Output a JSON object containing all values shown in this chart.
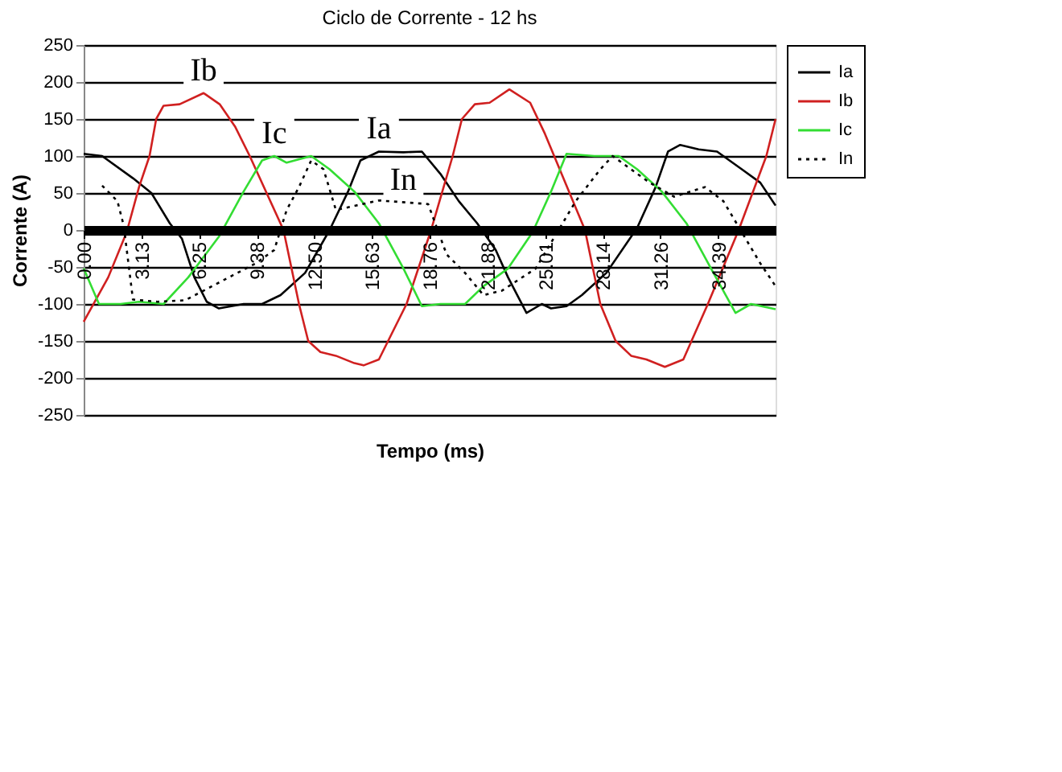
{
  "chart_data": {
    "type": "line",
    "title": "Ciclo de Corrente - 12 hs",
    "xlabel": "Tempo (ms)",
    "ylabel": "Corrente (A)",
    "xlim": [
      0,
      37.5
    ],
    "xticks": [
      {
        "value": 0,
        "label": "0.00"
      },
      3.13,
      6.25,
      9.38,
      {
        "value": 12.5,
        "label": "12.50"
      },
      15.63,
      18.76,
      21.88,
      25.01,
      28.14,
      31.26,
      34.39
    ],
    "ylim": [
      -250,
      250
    ],
    "yticks": [
      -250,
      -200,
      -150,
      -100,
      -50,
      0,
      50,
      100,
      150,
      200,
      250
    ],
    "grid": "y",
    "legend": "right",
    "line_style": "solid",
    "marker": "none",
    "annotations": [
      {
        "text": "Ib",
        "x": 6.5,
        "y": 185
      },
      {
        "text": "Ic",
        "x": 10.33,
        "y": 100
      },
      {
        "text": "Ia",
        "x": 16,
        "y": 106
      },
      {
        "text": "In",
        "x": 17.33,
        "y": 37.5
      }
    ],
    "series": [
      {
        "name": "Ia",
        "color": "#000000",
        "x": [
          0,
          1,
          2.67,
          3.67,
          4.67,
          5.33,
          6,
          6.67,
          7.33,
          8.67,
          9.67,
          10.67,
          12,
          13.33,
          14.33,
          15,
          16,
          17.33,
          18.33,
          19.33,
          20.33,
          21.33,
          22.33,
          23,
          24,
          24.83,
          25.33,
          26.17,
          27,
          28.33,
          30,
          31,
          31.67,
          32.33,
          33.33,
          34.33,
          35.67,
          36.67,
          37.5
        ],
        "values": [
          103,
          100,
          70,
          50,
          9,
          -12,
          -64,
          -97,
          -106,
          -100,
          -100,
          -88,
          -58,
          0,
          52,
          94,
          106,
          105,
          106,
          76,
          39,
          9,
          -27,
          -64,
          -112,
          -100,
          -106,
          -103,
          -88,
          -58,
          3,
          58,
          106,
          115,
          109,
          106,
          82,
          64,
          33
        ]
      },
      {
        "name": "Ib",
        "color": "#d02020",
        "x": [
          0,
          1.33,
          2.33,
          3,
          3.57,
          3.93,
          4.33,
          5.2,
          6.5,
          7.37,
          8.2,
          9,
          10.83,
          11.67,
          12.17,
          12.83,
          13.67,
          14.67,
          15.17,
          16,
          17.5,
          18.83,
          20,
          20.5,
          21.2,
          22,
          23.07,
          24.2,
          25,
          25.5,
          27.17,
          28,
          28.83,
          29.67,
          30.5,
          31.5,
          32.5,
          33.83,
          35.5,
          37,
          37.5
        ],
        "values": [
          -124,
          -64,
          -3,
          58,
          100,
          150,
          168,
          170,
          185,
          170,
          140,
          100,
          0,
          -100,
          -150,
          -165,
          -170,
          -180,
          -183,
          -175,
          -100,
          0,
          100,
          150,
          170,
          172,
          190,
          172,
          130,
          100,
          0,
          -100,
          -150,
          -170,
          -175,
          -185,
          -175,
          -100,
          0,
          100,
          150
        ]
      },
      {
        "name": "Ic",
        "color": "#33dd33",
        "x": [
          0,
          0.83,
          2,
          3,
          4.33,
          5.67,
          7.33,
          8.67,
          9.67,
          10.33,
          11,
          12.33,
          13.33,
          14.67,
          16,
          17.33,
          18.33,
          19.33,
          20.67,
          21.67,
          23,
          24.33,
          25.33,
          26.17,
          27.67,
          29,
          30,
          31.33,
          32.67,
          34,
          35.33,
          36.17,
          37.5
        ],
        "values": [
          -52,
          -100,
          -100,
          -97,
          -100,
          -64,
          -9,
          52,
          94,
          100,
          91,
          100,
          82,
          52,
          9,
          -52,
          -103,
          -100,
          -100,
          -76,
          -52,
          -3,
          52,
          103,
          100,
          100,
          82,
          52,
          9,
          -52,
          -112,
          -100,
          -107
        ]
      },
      {
        "name": "In",
        "color": "#000000",
        "line_style": "dotted",
        "x": [
          1,
          1.83,
          2.17,
          2.67,
          4,
          5.5,
          9.33,
          10.33,
          11,
          11.67,
          12.33,
          13,
          13.67,
          16,
          18.67,
          19.67,
          20.67,
          21.67,
          22.67,
          24.5,
          26.67,
          28,
          28.67,
          29.67,
          30.67,
          32,
          33.67,
          34.67,
          35.67,
          36.67,
          37.5
        ],
        "values": [
          60,
          39,
          6,
          -94,
          -97,
          -95,
          -45,
          -27,
          27,
          58,
          94,
          82,
          27,
          40,
          35,
          -33,
          -58,
          -88,
          -82,
          -52,
          39,
          82,
          100,
          82,
          64,
          45,
          58,
          39,
          -3,
          -45,
          -76
        ]
      }
    ]
  }
}
